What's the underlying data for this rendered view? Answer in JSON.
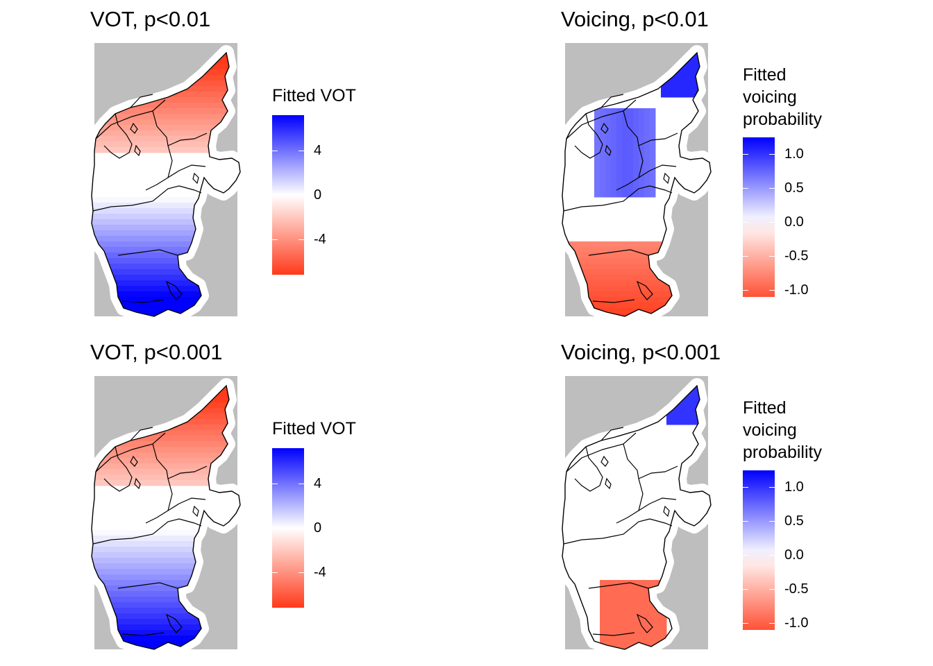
{
  "panels": [
    {
      "title": "VOT, p<0.01",
      "legend_title": [
        "Fitted VOT"
      ],
      "legend_ticks": [
        "4",
        "0",
        "-4"
      ],
      "legend_tick_values": [
        4,
        0,
        -4
      ],
      "legend_range": [
        -7.2,
        7.2
      ],
      "pattern": "vot",
      "significance": "p<0.01"
    },
    {
      "title": "Voicing, p<0.01",
      "legend_title": [
        "Fitted",
        "voicing",
        "probability"
      ],
      "legend_ticks": [
        "1.0",
        "0.5",
        "0.0",
        "-0.5",
        "-1.0"
      ],
      "legend_tick_values": [
        1.0,
        0.5,
        0.0,
        -0.5,
        -1.0
      ],
      "legend_range": [
        -1.1,
        1.25
      ],
      "pattern": "voicing",
      "significance": "p<0.01"
    },
    {
      "title": "VOT, p<0.001",
      "legend_title": [
        "Fitted VOT"
      ],
      "legend_ticks": [
        "4",
        "0",
        "-4"
      ],
      "legend_tick_values": [
        4,
        0,
        -4
      ],
      "legend_range": [
        -7.2,
        7.2
      ],
      "pattern": "vot",
      "significance": "p<0.001"
    },
    {
      "title": "Voicing, p<0.001",
      "legend_title": [
        "Fitted",
        "voicing",
        "probability"
      ],
      "legend_ticks": [
        "1.0",
        "0.5",
        "0.0",
        "-0.5",
        "-1.0"
      ],
      "legend_tick_values": [
        1.0,
        0.5,
        0.0,
        -0.5,
        -1.0
      ],
      "legend_range": [
        -1.1,
        1.25
      ],
      "pattern": "voicing",
      "significance": "p<0.001"
    }
  ],
  "colors": {
    "high": "#0000ff",
    "mid": "#ffffff",
    "low": "#ff3a1a",
    "no_data": "#bebebe",
    "outline": "#000000"
  }
}
